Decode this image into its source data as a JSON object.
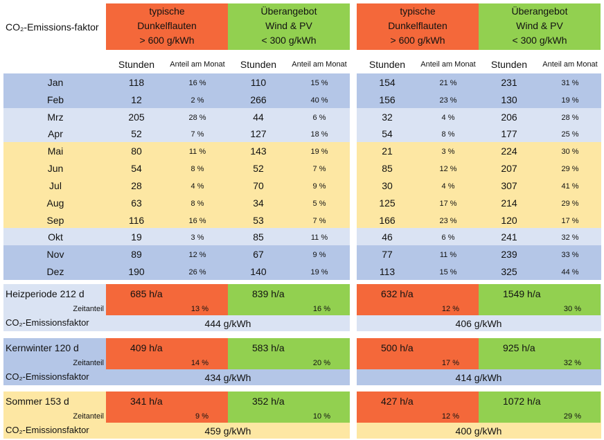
{
  "header": {
    "corner": "CO₂-Emissions-faktor"
  },
  "months": [
    "Jan",
    "Feb",
    "Mrz",
    "Apr",
    "Mai",
    "Jun",
    "Jul",
    "Aug",
    "Sep",
    "Okt",
    "Nov",
    "Dez"
  ],
  "panels": [
    {
      "groups": [
        [
          "typische",
          "Dunkelflauten",
          "> 600 g/kWh"
        ],
        [
          "Überangebot",
          "Wind & PV",
          "< 300 g/kWh"
        ]
      ],
      "subheaders": [
        "Stunden",
        "Anteil am Monat",
        "Stunden",
        "Anteil am Monat"
      ],
      "rows": [
        [
          "118",
          "16 %",
          "110",
          "15 %"
        ],
        [
          "12",
          "2 %",
          "266",
          "40 %"
        ],
        [
          "205",
          "28 %",
          "44",
          "6 %"
        ],
        [
          "52",
          "7 %",
          "127",
          "18 %"
        ],
        [
          "80",
          "11 %",
          "143",
          "19 %"
        ],
        [
          "54",
          "8 %",
          "52",
          "7 %"
        ],
        [
          "28",
          "4 %",
          "70",
          "9 %"
        ],
        [
          "63",
          "8 %",
          "34",
          "5 %"
        ],
        [
          "116",
          "16 %",
          "53",
          "7 %"
        ],
        [
          "19",
          "3 %",
          "85",
          "11 %"
        ],
        [
          "89",
          "12 %",
          "67",
          "9 %"
        ],
        [
          "190",
          "26 %",
          "140",
          "19 %"
        ]
      ]
    },
    {
      "groups": [
        [
          "typische",
          "Dunkelflauten",
          "> 600 g/kWh"
        ],
        [
          "Überangebot",
          "Wind & PV",
          "< 300 g/kWh"
        ]
      ],
      "subheaders": [
        "Stunden",
        "Anteil am Monat",
        "Stunden",
        "Anteil am Monat"
      ],
      "rows": [
        [
          "154",
          "21 %",
          "231",
          "31 %"
        ],
        [
          "156",
          "23 %",
          "130",
          "19 %"
        ],
        [
          "32",
          "4 %",
          "206",
          "28 %"
        ],
        [
          "54",
          "8 %",
          "177",
          "25 %"
        ],
        [
          "21",
          "3 %",
          "224",
          "30 %"
        ],
        [
          "85",
          "12 %",
          "207",
          "29 %"
        ],
        [
          "30",
          "4 %",
          "307",
          "41 %"
        ],
        [
          "125",
          "17 %",
          "214",
          "29 %"
        ],
        [
          "166",
          "23 %",
          "120",
          "17 %"
        ],
        [
          "46",
          "6 %",
          "241",
          "32 %"
        ],
        [
          "77",
          "11 %",
          "239",
          "33 %"
        ],
        [
          "113",
          "15 %",
          "325",
          "44 %"
        ]
      ]
    }
  ],
  "summaries": [
    {
      "label": "Heizperiode 212 d",
      "share_label": "Zeitanteil",
      "factor_label": "CO₂-Emissionsfaktor",
      "panels": [
        {
          "hours": [
            "685 h/a",
            "839 h/a"
          ],
          "shares": [
            "13 %",
            "16 %"
          ],
          "factor": "444 g/kWh"
        },
        {
          "hours": [
            "632 h/a",
            "1549 h/a"
          ],
          "shares": [
            "12 %",
            "30 %"
          ],
          "factor": "406 g/kWh"
        }
      ]
    },
    {
      "label": "Kernwinter 120 d",
      "share_label": "Zeitanteil",
      "factor_label": "CO₂-Emissionsfaktor",
      "panels": [
        {
          "hours": [
            "409 h/a",
            "583 h/a"
          ],
          "shares": [
            "14 %",
            "20 %"
          ],
          "factor": "434 g/kWh"
        },
        {
          "hours": [
            "500 h/a",
            "925 h/a"
          ],
          "shares": [
            "17 %",
            "32 %"
          ],
          "factor": "414 g/kWh"
        }
      ]
    },
    {
      "label": "Sommer 153 d",
      "share_label": "Zeitanteil",
      "factor_label": "CO₂-Emissionsfaktor",
      "panels": [
        {
          "hours": [
            "341 h/a",
            "352 h/a"
          ],
          "shares": [
            "9 %",
            "10 %"
          ],
          "factor": "459 g/kWh"
        },
        {
          "hours": [
            "427 h/a",
            "1072 h/a"
          ],
          "shares": [
            "12 %",
            "29 %"
          ],
          "factor": "400 g/kWh"
        }
      ]
    }
  ]
}
